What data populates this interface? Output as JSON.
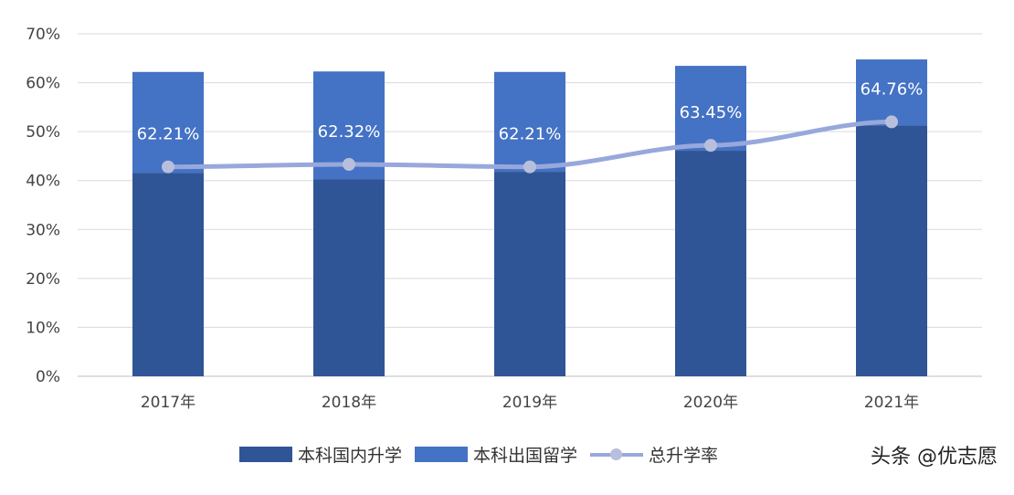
{
  "chart_data": {
    "type": "bar",
    "stacked": true,
    "categories": [
      "2017年",
      "2018年",
      "2019年",
      "2020年",
      "2021年"
    ],
    "series": [
      {
        "name": "本科国内升学",
        "type": "bar",
        "color": "#2f5597",
        "values": [
          41.6,
          40.3,
          41.8,
          46.1,
          51.3
        ]
      },
      {
        "name": "本科出国留学",
        "type": "bar",
        "color": "#4472c4",
        "values": [
          20.6,
          22.0,
          20.4,
          17.35,
          13.46
        ]
      },
      {
        "name": "总升学率",
        "type": "line",
        "color": "#98a8dc",
        "values": [
          42.8,
          43.3,
          42.8,
          47.2,
          52.0
        ]
      }
    ],
    "data_labels": [
      "62.21%",
      "62.32%",
      "62.21%",
      "63.45%",
      "64.76%"
    ],
    "yticks": [
      "0%",
      "10%",
      "20%",
      "30%",
      "40%",
      "50%",
      "60%",
      "70%"
    ],
    "ylim": [
      0,
      70
    ],
    "grid": true,
    "legend": "bottom"
  },
  "credit": "头条 @优志愿"
}
